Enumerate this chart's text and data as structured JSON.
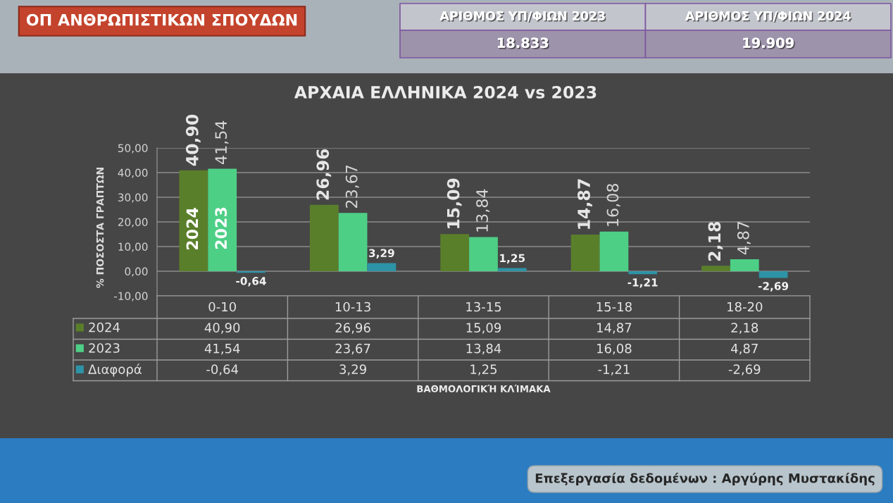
{
  "chart_data": {
    "type": "bar",
    "title": "ΑΡΧΑΙΑ ΕΛΛΗΝΙΚΑ 2024 vs 2023",
    "ylabel": "% ΠΟΣΟΣΤΑ ΓΡΑΠΤΩΝ",
    "categories": [
      "0-10",
      "10-13",
      "13-15",
      "15-18",
      "18-20"
    ],
    "series": [
      {
        "name": "2024",
        "color": "#5a7f2b",
        "values": [
          40.9,
          26.96,
          15.09,
          14.87,
          2.18
        ],
        "value_labels": [
          "40,90",
          "26,96",
          "15,09",
          "14,87",
          "2,18"
        ]
      },
      {
        "name": "2023",
        "color": "#4ecf86",
        "values": [
          41.54,
          23.67,
          13.84,
          16.08,
          4.87
        ],
        "value_labels": [
          "41,54",
          "23,67",
          "13,84",
          "16,08",
          "4,87"
        ]
      },
      {
        "name": "Διαφορά",
        "color": "#2d93a6",
        "values": [
          -0.64,
          3.29,
          1.25,
          -1.21,
          -2.69
        ],
        "value_labels": [
          "-0,64",
          "3,29",
          "1,25",
          "-1,21",
          "-2,69"
        ]
      }
    ],
    "ylim": [
      -10,
      50
    ],
    "yticks": [
      {
        "value": -10,
        "label": "-10,00"
      },
      {
        "value": 0,
        "label": "0,00"
      },
      {
        "value": 10,
        "label": "10,00"
      },
      {
        "value": 20,
        "label": "20,00"
      },
      {
        "value": 30,
        "label": "30,00"
      },
      {
        "value": 40,
        "label": "40,00"
      },
      {
        "value": 50,
        "label": "50,00"
      }
    ],
    "grid": "y",
    "legend": "bottom left",
    "annotations": [
      "ΟΠ ΑΝΘΡΩΠΙΣΤΙΚΩΝ ΣΠΟΥΔΩΝ",
      "ΑΡΙΘΜΟΣ ΥΠ/ΦΙΩΝ 2023",
      "18.833",
      "ΑΡΙΘΜΟΣ ΥΠ/ΦΙΩΝ 2024",
      "19.909",
      "ΒΑΘΜΟΛΟΓΙΚΉ ΚΛΊΜΑΚΑ",
      "Επεξεργασία δεδομένων : Αργύρης Μυστακίδης"
    ]
  }
}
